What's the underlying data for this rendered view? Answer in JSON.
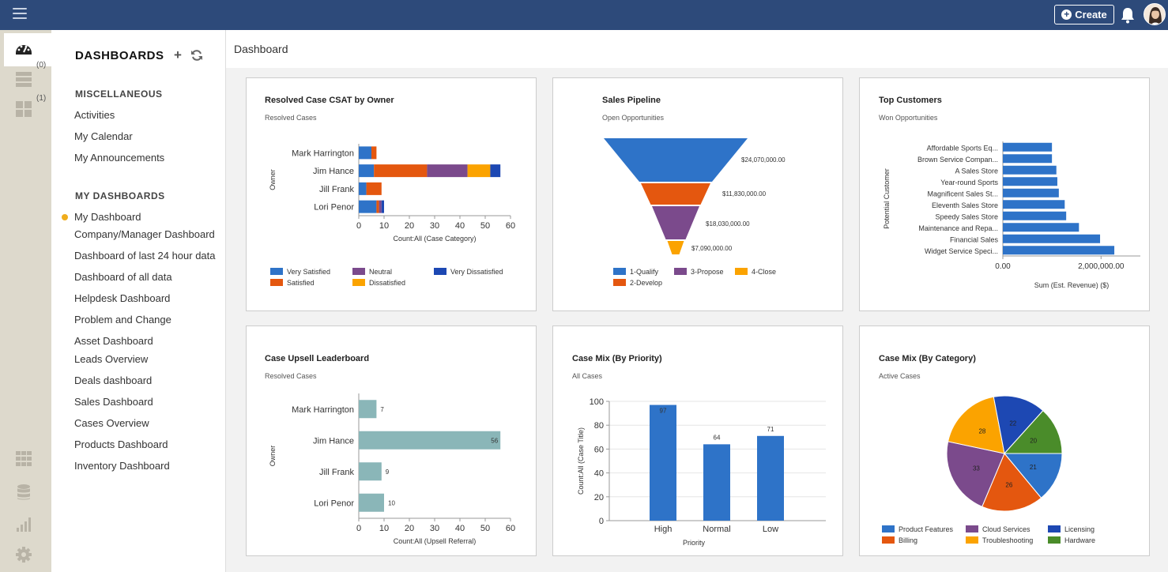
{
  "topbar": {
    "create_label": "Create"
  },
  "rail": {
    "count_1": "(0)",
    "count_2": "(1)"
  },
  "sidebar": {
    "title": "DASHBOARDS",
    "add_label": "+",
    "sections": [
      {
        "title": "MISCELLANEOUS",
        "items": [
          "Activities",
          "My Calendar",
          "My Announcements"
        ]
      },
      {
        "title": "MY DASHBOARDS",
        "items": [
          "My Dashboard",
          "Company/Manager Dashboard",
          "Dashboard of last 24 hour data",
          "Dashboard of all data",
          "Helpdesk Dashboard",
          "Problem and Change",
          "Asset Dashboard",
          "Leads Overview",
          "Deals dashboard",
          "Sales Dashboard",
          "Cases Overview",
          "Products Dashboard",
          "Inventory Dashboard"
        ]
      }
    ]
  },
  "main": {
    "title": "Dashboard"
  },
  "cards": [
    {
      "title": "Resolved Case CSAT by Owner",
      "subtitle": "Resolved Cases"
    },
    {
      "title": "Sales Pipeline",
      "subtitle": "Open Opportunities"
    },
    {
      "title": "Top Customers",
      "subtitle": "Won Opportunities"
    },
    {
      "title": "Case Upsell Leaderboard",
      "subtitle": "Resolved Cases"
    },
    {
      "title": "Case Mix (By Priority)",
      "subtitle": "All Cases"
    },
    {
      "title": "Case Mix (By Category)",
      "subtitle": "Active Cases"
    }
  ],
  "colors": {
    "blue": "#2e73c8",
    "orange": "#e4570f",
    "purple": "#7b4a8c",
    "darkblue": "#1d48b3",
    "amber": "#fba300",
    "green": "#4a8c2a",
    "teal": "#8ab6b8",
    "topbar": "#2d4a7a"
  },
  "chart_data": [
    {
      "type": "bar",
      "orientation": "horizontal",
      "stacked": true,
      "categories": [
        "Mark Harrington",
        "Jim Hance",
        "Jill Frank",
        "Lori Penor"
      ],
      "series": [
        {
          "name": "Very Satisfied",
          "color": "#2e73c8",
          "values": [
            5,
            6,
            3,
            7
          ]
        },
        {
          "name": "Satisfied",
          "color": "#e4570f",
          "values": [
            2,
            21,
            6,
            1
          ]
        },
        {
          "name": "Neutral",
          "color": "#7b4a8c",
          "values": [
            0,
            16,
            0,
            1
          ]
        },
        {
          "name": "Dissatisfied",
          "color": "#fba300",
          "values": [
            0,
            9,
            0,
            0
          ]
        },
        {
          "name": "Very Dissatisfied",
          "color": "#1d48b3",
          "values": [
            0,
            4,
            0,
            1
          ]
        }
      ],
      "ylabel": "Owner",
      "xlabel": "Count:All (Case Category)",
      "xlim": [
        0,
        60
      ],
      "xticks": [
        0,
        10,
        20,
        30,
        40,
        50,
        60
      ],
      "legend": "bottom"
    },
    {
      "type": "funnel",
      "stages": [
        {
          "name": "1-Qualify",
          "value": "$24,070,000.00",
          "color": "#2e73c8"
        },
        {
          "name": "2-Develop",
          "value": "$11,830,000.00",
          "color": "#e4570f"
        },
        {
          "name": "3-Propose",
          "value": "$18,030,000.00",
          "color": "#7b4a8c"
        },
        {
          "name": "4-Close",
          "value": "$7,090,000.00",
          "color": "#fba300"
        }
      ],
      "legend": "bottom"
    },
    {
      "type": "bar",
      "orientation": "horizontal",
      "categories": [
        "Affordable Sports Eq...",
        "Brown Service Compan...",
        "A Sales Store",
        "Year-round Sports",
        "Magnificent Sales St...",
        "Eleventh Sales Store",
        "Speedy Sales Store",
        "Maintenance and Repa...",
        "Financial Sales",
        "Widget Service Speci..."
      ],
      "values": [
        1000000,
        1000000,
        1090000,
        1110000,
        1140000,
        1260000,
        1290000,
        1550000,
        1980000,
        2270000
      ],
      "color": "#2e73c8",
      "ylabel": "Potential Customer",
      "xlabel": "Sum (Est. Revenue) ($)",
      "xlim": [
        0,
        2800000
      ],
      "xtick_labels": [
        "0.00",
        "2,000,000.00"
      ],
      "xticks": [
        0,
        2000000
      ]
    },
    {
      "type": "bar",
      "orientation": "horizontal",
      "categories": [
        "Mark Harrington",
        "Jim Hance",
        "Jill Frank",
        "Lori Penor"
      ],
      "values": [
        7,
        56,
        9,
        10
      ],
      "color": "#8ab6b8",
      "ylabel": "Owner",
      "xlabel": "Count:All (Upsell Referral)",
      "xlim": [
        0,
        60
      ],
      "xticks": [
        0,
        10,
        20,
        30,
        40,
        50,
        60
      ]
    },
    {
      "type": "bar",
      "categories": [
        "High",
        "Normal",
        "Low"
      ],
      "values": [
        97,
        64,
        71
      ],
      "color": "#2e73c8",
      "xlabel": "Priority",
      "ylabel": "Count:All (Case Title)",
      "ylim": [
        0,
        100
      ],
      "yticks": [
        0,
        20,
        40,
        60,
        80,
        100
      ]
    },
    {
      "type": "pie",
      "slices": [
        {
          "name": "Product Features",
          "value": 21,
          "color": "#2e73c8"
        },
        {
          "name": "Billing",
          "value": 26,
          "color": "#e4570f"
        },
        {
          "name": "Cloud Services",
          "value": 33,
          "color": "#7b4a8c"
        },
        {
          "name": "Troubleshooting",
          "value": 28,
          "color": "#fba300"
        },
        {
          "name": "Licensing",
          "value": 22,
          "color": "#1d48b3"
        },
        {
          "name": "Hardware",
          "value": 20,
          "color": "#4a8c2a"
        }
      ],
      "legend": "bottom"
    }
  ]
}
